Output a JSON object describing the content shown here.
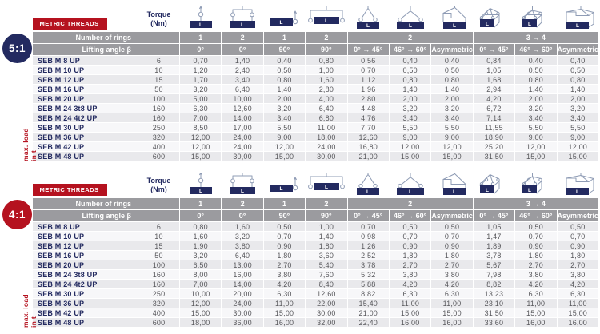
{
  "colors": {
    "navy": "#232a60",
    "red": "#b5121f",
    "header_gray": "#9b9b9f",
    "line_blue": "#8f9cb5"
  },
  "tables": [
    {
      "ratio": "5:1",
      "badge_color": "#232a60",
      "metric_threads_label": "METRIC THREADS",
      "max_load_label": "max. load in t",
      "torque_label": "Torque",
      "torque_unit": "(Nm)",
      "rings_label": "Number of rings",
      "angle_label": "Lifting angle β",
      "rings_groups": [
        {
          "label": "1",
          "span": 1
        },
        {
          "label": "2",
          "span": 1
        },
        {
          "label": "1",
          "span": 1
        },
        {
          "label": "2",
          "span": 1
        },
        {
          "label": "2",
          "span": 3
        },
        {
          "label": "3 → 4",
          "span": 3
        }
      ],
      "angles": [
        "0°",
        "0°",
        "90°",
        "90°",
        "0° → 45°",
        "46° → 60°",
        "Asymmetric",
        "0° → 45°",
        "46° → 60°",
        "Asymmetric"
      ],
      "icons": [
        "ring-vertical-1",
        "ring-vertical-2",
        "ring-side-1",
        "ring-side-2",
        "sling-2-leg-0-45",
        "sling-2-leg-46-60",
        "sling-2-leg-asymmetric",
        "sling-3-4-leg-0-45",
        "sling-3-4-leg-46-60",
        "sling-3-4-leg-asymmetric"
      ],
      "rows": [
        {
          "name": "SEB M 8 UP",
          "torque": "6",
          "values": [
            "0,70",
            "1,40",
            "0,40",
            "0,80",
            "0,56",
            "0,40",
            "0,40",
            "0,84",
            "0,40",
            "0,40"
          ]
        },
        {
          "name": "SEB M 10 UP",
          "torque": "10",
          "values": [
            "1,20",
            "2,40",
            "0,50",
            "1,00",
            "0,70",
            "0,50",
            "0,50",
            "1,05",
            "0,50",
            "0,50"
          ]
        },
        {
          "name": "SEB M 12 UP",
          "torque": "15",
          "values": [
            "1,70",
            "3,40",
            "0,80",
            "1,60",
            "1,12",
            "0,80",
            "0,80",
            "1,68",
            "0,80",
            "0,80"
          ]
        },
        {
          "name": "SEB M 16 UP",
          "torque": "50",
          "values": [
            "3,20",
            "6,40",
            "1,40",
            "2,80",
            "1,96",
            "1,40",
            "1,40",
            "2,94",
            "1,40",
            "1,40"
          ]
        },
        {
          "name": "SEB M 20 UP",
          "torque": "100",
          "values": [
            "5,00",
            "10,00",
            "2,00",
            "4,00",
            "2,80",
            "2,00",
            "2,00",
            "4,20",
            "2,00",
            "2,00"
          ]
        },
        {
          "name": "SEB M 24 3t8 UP",
          "torque": "160",
          "values": [
            "6,30",
            "12,60",
            "3,20",
            "6,40",
            "4,48",
            "3,20",
            "3,20",
            "6,72",
            "3,20",
            "3,20"
          ]
        },
        {
          "name": "SEB M 24 4t2 UP",
          "torque": "160",
          "values": [
            "7,00",
            "14,00",
            "3,40",
            "6,80",
            "4,76",
            "3,40",
            "3,40",
            "7,14",
            "3,40",
            "3,40"
          ]
        },
        {
          "name": "SEB M 30 UP",
          "torque": "250",
          "values": [
            "8,50",
            "17,00",
            "5,50",
            "11,00",
            "7,70",
            "5,50",
            "5,50",
            "11,55",
            "5,50",
            "5,50"
          ]
        },
        {
          "name": "SEB M 36 UP",
          "torque": "320",
          "values": [
            "12,00",
            "24,00",
            "9,00",
            "18,00",
            "12,60",
            "9,00",
            "9,00",
            "18,90",
            "9,00",
            "9,00"
          ]
        },
        {
          "name": "SEB M 42 UP",
          "torque": "400",
          "values": [
            "12,00",
            "24,00",
            "12,00",
            "24,00",
            "16,80",
            "12,00",
            "12,00",
            "25,20",
            "12,00",
            "12,00"
          ]
        },
        {
          "name": "SEB M 48 UP",
          "torque": "600",
          "values": [
            "15,00",
            "30,00",
            "15,00",
            "30,00",
            "21,00",
            "15,00",
            "15,00",
            "31,50",
            "15,00",
            "15,00"
          ]
        }
      ]
    },
    {
      "ratio": "4:1",
      "badge_color": "#b5121f",
      "metric_threads_label": "METRIC THREADS",
      "max_load_label": "max. load in t",
      "torque_label": "Torque",
      "torque_unit": "(Nm)",
      "rings_label": "Number of rings",
      "angle_label": "Lifting angle β",
      "rings_groups": [
        {
          "label": "1",
          "span": 1
        },
        {
          "label": "2",
          "span": 1
        },
        {
          "label": "1",
          "span": 1
        },
        {
          "label": "2",
          "span": 1
        },
        {
          "label": "2",
          "span": 3
        },
        {
          "label": "3 → 4",
          "span": 3
        }
      ],
      "angles": [
        "0°",
        "0°",
        "90°",
        "90°",
        "0° → 45°",
        "46° → 60°",
        "Asymmetric",
        "0° → 45°",
        "46° → 60°",
        "Asymmetric"
      ],
      "icons": [
        "ring-vertical-1",
        "ring-vertical-2",
        "ring-side-1",
        "ring-side-2",
        "sling-2-leg-0-45",
        "sling-2-leg-46-60",
        "sling-2-leg-asymmetric",
        "sling-3-4-leg-0-45",
        "sling-3-4-leg-46-60",
        "sling-3-4-leg-asymmetric"
      ],
      "rows": [
        {
          "name": "SEB M 8 UP",
          "torque": "6",
          "values": [
            "0,80",
            "1,60",
            "0,50",
            "1,00",
            "0,70",
            "0,50",
            "0,50",
            "1,05",
            "0,50",
            "0,50"
          ]
        },
        {
          "name": "SEB M 10 UP",
          "torque": "10",
          "values": [
            "1,60",
            "3,20",
            "0,70",
            "1,40",
            "0,98",
            "0,70",
            "0,70",
            "1,47",
            "0,70",
            "0,70"
          ]
        },
        {
          "name": "SEB M 12 UP",
          "torque": "15",
          "values": [
            "1,90",
            "3,80",
            "0,90",
            "1,80",
            "1,26",
            "0,90",
            "0,90",
            "1,89",
            "0,90",
            "0,90"
          ]
        },
        {
          "name": "SEB M 16 UP",
          "torque": "50",
          "values": [
            "3,20",
            "6,40",
            "1,80",
            "3,60",
            "2,52",
            "1,80",
            "1,80",
            "3,78",
            "1,80",
            "1,80"
          ]
        },
        {
          "name": "SEB M 20 UP",
          "torque": "100",
          "values": [
            "6,50",
            "13,00",
            "2,70",
            "5,40",
            "3,78",
            "2,70",
            "2,70",
            "5,67",
            "2,70",
            "2,70"
          ]
        },
        {
          "name": "SEB M 24 3t8 UP",
          "torque": "160",
          "values": [
            "8,00",
            "16,00",
            "3,80",
            "7,60",
            "5,32",
            "3,80",
            "3,80",
            "7,98",
            "3,80",
            "3,80"
          ]
        },
        {
          "name": "SEB M 24 4t2 UP",
          "torque": "160",
          "values": [
            "7,00",
            "14,00",
            "4,20",
            "8,40",
            "5,88",
            "4,20",
            "4,20",
            "8,82",
            "4,20",
            "4,20"
          ]
        },
        {
          "name": "SEB M 30 UP",
          "torque": "250",
          "values": [
            "10,00",
            "20,00",
            "6,30",
            "12,60",
            "8,82",
            "6,30",
            "6,30",
            "13,23",
            "6,30",
            "6,30"
          ]
        },
        {
          "name": "SEB M 36 UP",
          "torque": "320",
          "values": [
            "12,00",
            "24,00",
            "11,00",
            "22,00",
            "15,40",
            "11,00",
            "11,00",
            "23,10",
            "11,00",
            "11,00"
          ]
        },
        {
          "name": "SEB M 42 UP",
          "torque": "400",
          "values": [
            "15,00",
            "30,00",
            "15,00",
            "30,00",
            "21,00",
            "15,00",
            "15,00",
            "31,50",
            "15,00",
            "15,00"
          ]
        },
        {
          "name": "SEB M 48 UP",
          "torque": "600",
          "values": [
            "18,00",
            "36,00",
            "16,00",
            "32,00",
            "22,40",
            "16,00",
            "16,00",
            "33,60",
            "16,00",
            "16,00"
          ]
        }
      ]
    }
  ]
}
